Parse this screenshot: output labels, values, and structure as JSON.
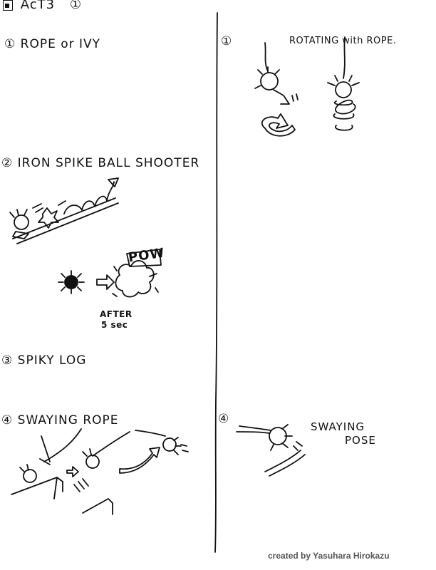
{
  "header": {
    "title": "AcT3",
    "marker": "①"
  },
  "left": {
    "items": [
      {
        "num": "①",
        "label": "ROPE or IVY"
      },
      {
        "num": "②",
        "label": "IRON SPIKE BALL SHOOTER"
      },
      {
        "num": "③",
        "label": "SPIKY LOG"
      },
      {
        "num": "④",
        "label": "SWAYING ROPE"
      }
    ],
    "sound_effect": "POW",
    "after_note": [
      "AFTER",
      "5 sec"
    ]
  },
  "right": {
    "items": [
      {
        "num": "①",
        "label": "ROTATING with ROPE."
      },
      {
        "num": "④",
        "label": [
          "SWAYING",
          "POSE"
        ]
      }
    ]
  },
  "credit": "created by Yasuhara Hirokazu"
}
